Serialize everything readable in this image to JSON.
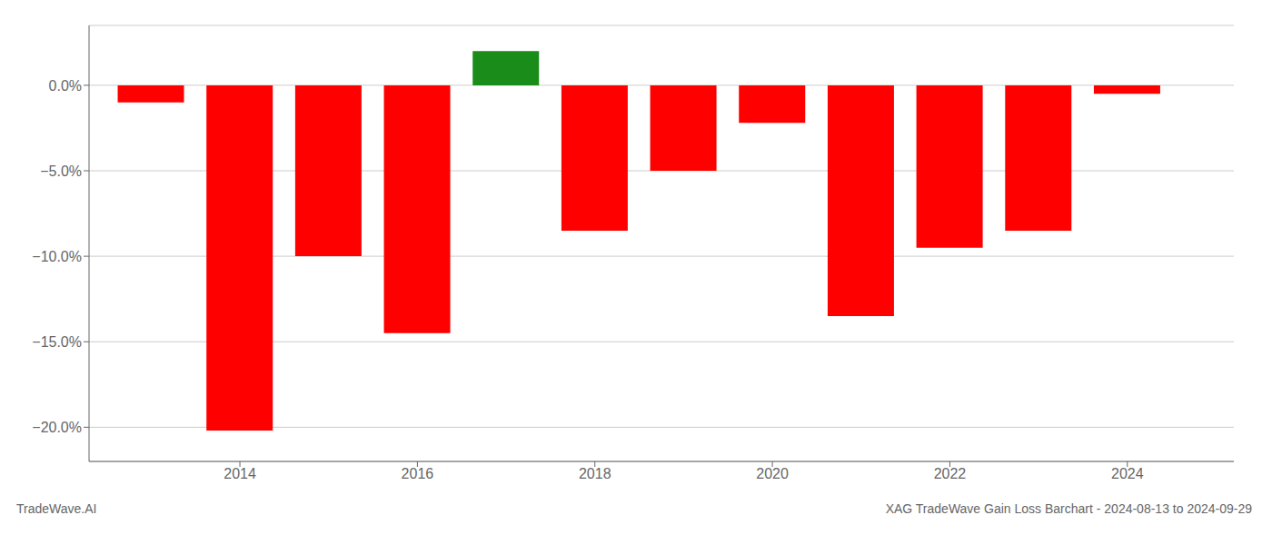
{
  "chart_data": {
    "type": "bar",
    "title": "XAG TradeWave Gain Loss Barchart - 2024-08-13 to 2024-09-29",
    "annotations": [
      "TradeWave.AI"
    ],
    "x": [
      2013,
      2014,
      2015,
      2016,
      2017,
      2018,
      2019,
      2020,
      2021,
      2022,
      2023,
      2024
    ],
    "values": [
      -1.0,
      -20.2,
      -10.0,
      -14.5,
      2.0,
      -8.5,
      -5.0,
      -2.2,
      -13.5,
      -9.5,
      -8.5,
      -0.5
    ],
    "colors": [
      "#ff0000",
      "#ff0000",
      "#ff0000",
      "#ff0000",
      "#1a8c1a",
      "#ff0000",
      "#ff0000",
      "#ff0000",
      "#ff0000",
      "#ff0000",
      "#ff0000",
      "#ff0000"
    ],
    "xlim": [
      2012.3,
      2025.2
    ],
    "xticks": [
      2014,
      2016,
      2018,
      2020,
      2022,
      2024
    ],
    "ylim": [
      -22,
      3.5
    ],
    "yticks": [
      {
        "value": 0.0,
        "label": "0.0%"
      },
      {
        "value": -5.0,
        "label": "−5.0%"
      },
      {
        "value": -10.0,
        "label": "−10.0%"
      },
      {
        "value": -15.0,
        "label": "−15.0%"
      },
      {
        "value": -20.0,
        "label": "−20.0%"
      }
    ],
    "grid": true
  }
}
